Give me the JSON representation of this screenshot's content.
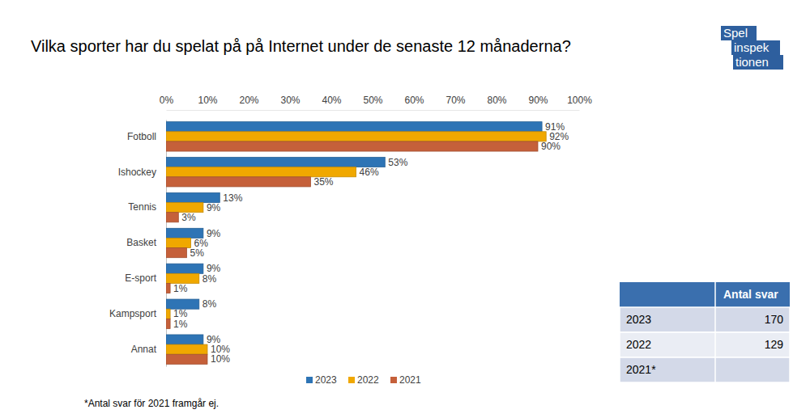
{
  "chart_data": {
    "type": "bar",
    "title": "Vilka sporter har du spelat på på Internet under de senaste 12 månaderna?",
    "orientation": "horizontal",
    "categories": [
      "Fotboll",
      "Ishockey",
      "Tennis",
      "Basket",
      "E-sport",
      "Kampsport",
      "Annat"
    ],
    "series": [
      {
        "name": "2023",
        "color": "#2e74b5",
        "values": [
          91,
          53,
          13,
          9,
          9,
          8,
          9
        ],
        "value_labels": [
          "91%",
          "53%",
          "13%",
          "9%",
          "9%",
          "8%",
          "9%"
        ]
      },
      {
        "name": "2022",
        "color": "#f0a800",
        "values": [
          92,
          46,
          9,
          6,
          8,
          1,
          10
        ],
        "value_labels": [
          "92%",
          "46%",
          "9%",
          "6%",
          "8%",
          "1%",
          "10%"
        ]
      },
      {
        "name": "2021",
        "color": "#c5603a",
        "values": [
          90,
          35,
          3,
          5,
          1,
          1,
          10
        ],
        "value_labels": [
          "90%",
          "35%",
          "3%",
          "5%",
          "1%",
          "1%",
          "10%"
        ]
      }
    ],
    "xlim": [
      0,
      100
    ],
    "xticks": [
      {
        "value": 0,
        "label": "0%"
      },
      {
        "value": 10,
        "label": "10%"
      },
      {
        "value": 20,
        "label": "20%"
      },
      {
        "value": 30,
        "label": "30%"
      },
      {
        "value": 40,
        "label": "40%"
      },
      {
        "value": 50,
        "label": "50%"
      },
      {
        "value": 60,
        "label": "60%"
      },
      {
        "value": 70,
        "label": "70%"
      },
      {
        "value": 80,
        "label": "80%"
      },
      {
        "value": 90,
        "label": "90%"
      },
      {
        "value": 100,
        "label": "100%"
      }
    ],
    "grid": false,
    "legend": "bottom",
    "data_labels": true,
    "annotations": [
      "*Antal svar för 2021 framgår ej."
    ]
  },
  "logo": {
    "lines": [
      "Spel",
      "inspek",
      "tionen"
    ]
  },
  "table": {
    "header": [
      null,
      "Antal svar"
    ],
    "rows": [
      [
        "2023",
        170
      ],
      [
        "2022",
        129
      ],
      [
        "2021*",
        null
      ]
    ]
  }
}
